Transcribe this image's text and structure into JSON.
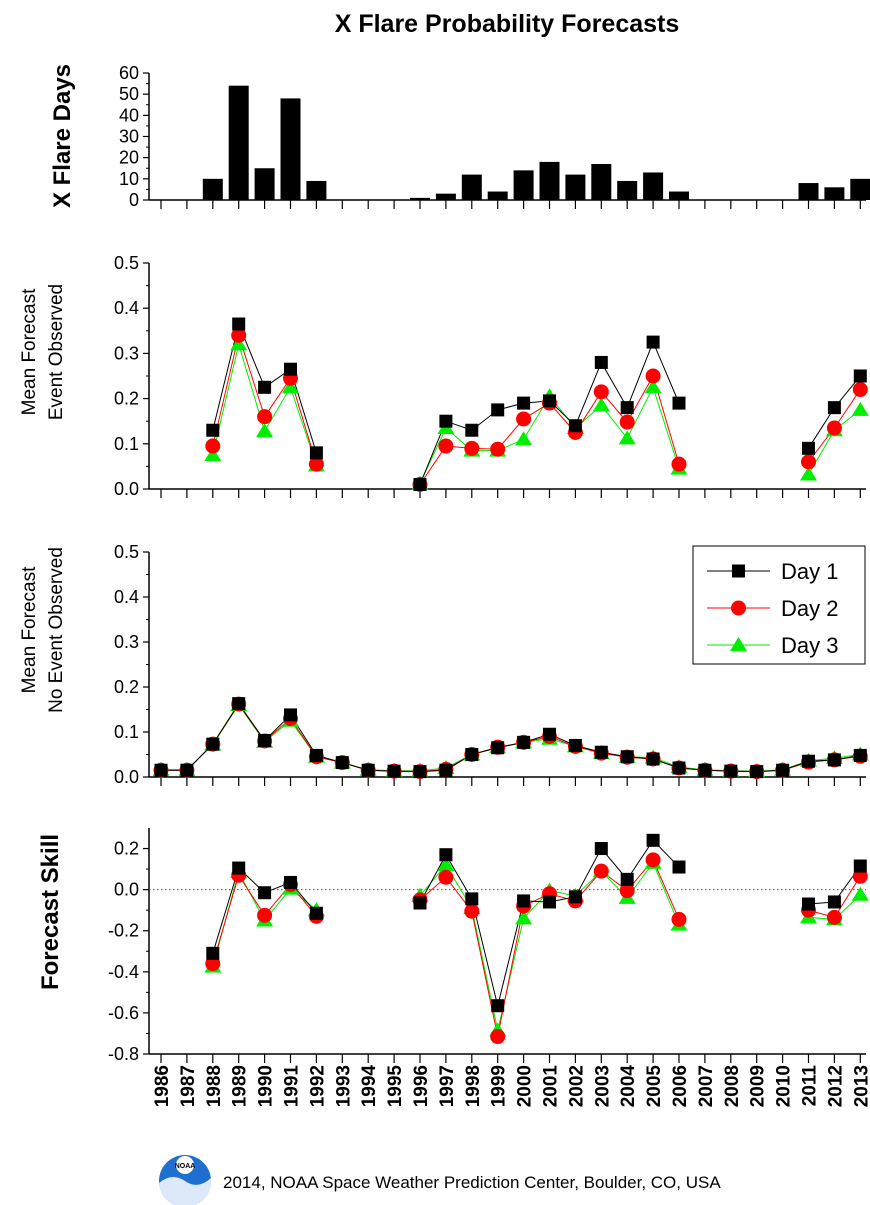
{
  "chart_data": {
    "title": "X Flare Probability Forecasts",
    "years": [
      "1986",
      "1987",
      "1988",
      "1989",
      "1990",
      "1991",
      "1992",
      "1993",
      "1994",
      "1995",
      "1996",
      "1997",
      "1998",
      "1999",
      "2000",
      "2001",
      "2002",
      "2003",
      "2004",
      "2005",
      "2006",
      "2007",
      "2008",
      "2009",
      "2010",
      "2011",
      "2012",
      "2013"
    ],
    "legend": {
      "day1": "Day 1",
      "day2": "Day 2",
      "day3": "Day 3",
      "position": "top-right of third panel"
    },
    "colors": {
      "day1": "#000000",
      "day2": "#ff0000",
      "day3": "#00ee00"
    },
    "credit": "2014, NOAA Space Weather Prediction Center, Boulder, CO, USA",
    "logo_text": "NOAA",
    "panels": [
      {
        "type": "bar",
        "ylabel": "X Flare Days",
        "ylim": [
          0,
          60
        ],
        "ticks": [
          "0",
          "10",
          "20",
          "30",
          "40",
          "50",
          "60"
        ],
        "values": [
          0,
          0,
          10,
          54,
          15,
          48,
          9,
          0,
          0,
          0,
          1,
          3,
          12,
          4,
          14,
          18,
          12,
          17,
          9,
          13,
          4,
          0,
          0,
          0,
          0,
          8,
          6,
          10
        ]
      },
      {
        "type": "line",
        "ylabel": [
          "Mean Forecast",
          "Event Observed"
        ],
        "ylim": [
          0,
          0.5
        ],
        "ticks": [
          "0.0",
          "0.1",
          "0.2",
          "0.3",
          "0.4",
          "0.5"
        ],
        "series": [
          {
            "key": "day1",
            "values": [
              null,
              null,
              0.13,
              0.365,
              0.225,
              0.265,
              0.08,
              null,
              null,
              null,
              0.01,
              0.15,
              0.13,
              0.175,
              0.19,
              0.195,
              0.14,
              0.28,
              0.18,
              0.325,
              0.19,
              null,
              null,
              null,
              null,
              0.09,
              0.18,
              0.25
            ]
          },
          {
            "key": "day2",
            "values": [
              null,
              null,
              0.095,
              0.34,
              0.16,
              0.245,
              0.055,
              null,
              null,
              null,
              0.01,
              0.095,
              0.09,
              0.088,
              0.155,
              0.19,
              0.125,
              0.215,
              0.148,
              0.25,
              0.055,
              null,
              null,
              null,
              null,
              0.06,
              0.135,
              0.22
            ]
          },
          {
            "key": "day3",
            "values": [
              null,
              null,
              0.075,
              0.32,
              0.128,
              0.225,
              0.052,
              null,
              null,
              null,
              0.012,
              0.135,
              0.085,
              0.085,
              0.11,
              0.205,
              0.135,
              0.185,
              0.112,
              0.225,
              0.045,
              null,
              null,
              null,
              null,
              0.032,
              0.13,
              0.175
            ]
          }
        ]
      },
      {
        "type": "line",
        "ylabel": [
          "Mean Forecast",
          "No Event Observed"
        ],
        "ylim": [
          0,
          0.5
        ],
        "ticks": [
          "0.0",
          "0.1",
          "0.2",
          "0.3",
          "0.4",
          "0.5"
        ],
        "series": [
          {
            "key": "day1",
            "values": [
              0.015,
              0.015,
              0.073,
              0.163,
              0.081,
              0.138,
              0.048,
              0.032,
              0.015,
              0.013,
              0.012,
              0.015,
              0.05,
              0.065,
              0.077,
              0.095,
              0.07,
              0.055,
              0.045,
              0.04,
              0.02,
              0.015,
              0.013,
              0.012,
              0.015,
              0.035,
              0.038,
              0.048
            ]
          },
          {
            "key": "day2",
            "values": [
              0.015,
              0.015,
              0.073,
              0.162,
              0.08,
              0.13,
              0.045,
              0.032,
              0.015,
              0.013,
              0.012,
              0.017,
              0.05,
              0.066,
              0.077,
              0.09,
              0.068,
              0.053,
              0.044,
              0.04,
              0.02,
              0.015,
              0.013,
              0.012,
              0.015,
              0.033,
              0.038,
              0.046
            ]
          },
          {
            "key": "day3",
            "values": [
              0.016,
              0.016,
              0.072,
              0.16,
              0.078,
              0.125,
              0.045,
              0.032,
              0.016,
              0.014,
              0.014,
              0.02,
              0.05,
              0.066,
              0.077,
              0.085,
              0.068,
              0.053,
              0.045,
              0.043,
              0.022,
              0.016,
              0.014,
              0.013,
              0.016,
              0.036,
              0.042,
              0.05
            ]
          }
        ]
      },
      {
        "type": "line",
        "ylabel": "Forecast Skill",
        "ylim": [
          -0.8,
          0.3
        ],
        "ticks": [
          "0.2",
          "0.0",
          "-0.2",
          "-0.4",
          "-0.6",
          "-0.8"
        ],
        "tick_values": [
          0.2,
          0.0,
          -0.2,
          -0.4,
          -0.6,
          -0.8
        ],
        "zero_line": true,
        "series": [
          {
            "key": "day1",
            "values": [
              null,
              null,
              -0.31,
              0.105,
              -0.015,
              0.035,
              -0.115,
              null,
              null,
              null,
              -0.065,
              0.17,
              -0.045,
              -0.565,
              -0.055,
              -0.06,
              -0.035,
              0.2,
              0.05,
              0.24,
              0.11,
              null,
              null,
              null,
              null,
              -0.07,
              -0.06,
              0.115
            ]
          },
          {
            "key": "day2",
            "values": [
              null,
              null,
              -0.36,
              0.07,
              -0.125,
              0.025,
              -0.13,
              null,
              null,
              null,
              -0.05,
              0.06,
              -0.105,
              -0.715,
              -0.08,
              -0.02,
              -0.055,
              0.09,
              -0.005,
              0.145,
              -0.145,
              null,
              null,
              null,
              null,
              -0.1,
              -0.135,
              0.065
            ]
          },
          {
            "key": "day3",
            "values": [
              null,
              null,
              -0.375,
              0.085,
              -0.15,
              0.005,
              -0.1,
              null,
              null,
              null,
              -0.03,
              0.12,
              -0.09,
              -0.685,
              -0.14,
              -0.005,
              -0.03,
              0.09,
              -0.04,
              0.13,
              -0.17,
              null,
              null,
              null,
              null,
              -0.135,
              -0.145,
              -0.025
            ]
          }
        ]
      }
    ]
  }
}
